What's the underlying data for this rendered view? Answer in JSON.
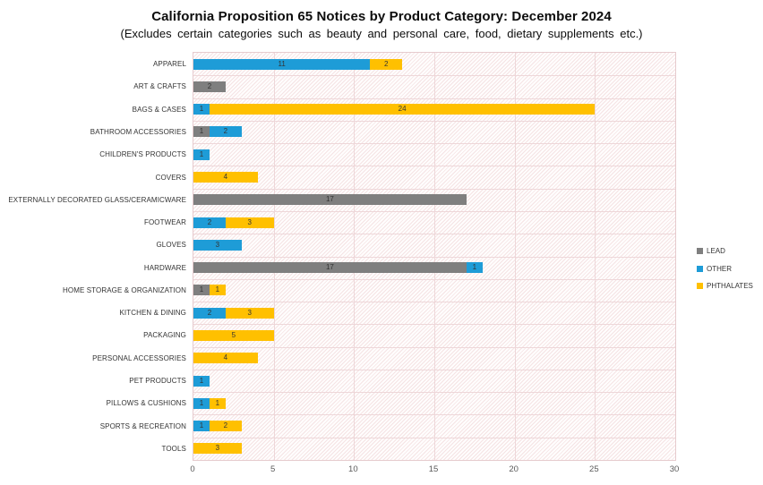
{
  "title": "California Proposition 65 Notices by Product Category: December 2024",
  "subtitle": "(Excludes certain categories such as beauty and personal care, food, dietary supplements etc.)",
  "colors": {
    "lead": "#7F7F7F",
    "other": "#1E9CD7",
    "phthalates": "#FFC000",
    "gridline": "#EED7D9",
    "plot_border": "#E6CBCE",
    "axis_text": "#595959",
    "label_text": "#333333"
  },
  "legend": {
    "position": "right",
    "items": [
      {
        "label": "LEAD",
        "color": "#7F7F7F"
      },
      {
        "label": "OTHER",
        "color": "#1E9CD7"
      },
      {
        "label": "PHTHALATES",
        "color": "#FFC000"
      }
    ]
  },
  "chart_data": {
    "type": "bar",
    "orientation": "horizontal-stacked",
    "title": "California Proposition 65 Notices by Product Category: December 2024",
    "subtitle": "(Excludes certain categories such as beauty and personal care, food, dietary supplements etc.)",
    "categories": [
      "APPAREL",
      "ART & CRAFTS",
      "BAGS & CASES",
      "BATHROOM ACCESSORIES",
      "CHILDREN'S PRODUCTS",
      "COVERS",
      "EXTERNALLY DECORATED GLASS/CERAMICWARE",
      "FOOTWEAR",
      "GLOVES",
      "HARDWARE",
      "HOME STORAGE & ORGANIZATION",
      "KITCHEN & DINING",
      "PACKAGING",
      "PERSONAL ACCESSORIES",
      "PET PRODUCTS",
      "PILLOWS & CUSHIONS",
      "SPORTS & RECREATION",
      "TOOLS"
    ],
    "series": [
      {
        "name": "LEAD",
        "color": "#7F7F7F",
        "values": [
          0,
          2,
          0,
          1,
          0,
          0,
          17,
          0,
          0,
          17,
          1,
          0,
          0,
          0,
          0,
          0,
          0,
          0
        ]
      },
      {
        "name": "OTHER",
        "color": "#1E9CD7",
        "values": [
          11,
          0,
          1,
          2,
          1,
          0,
          0,
          2,
          3,
          1,
          0,
          2,
          0,
          0,
          1,
          1,
          1,
          0
        ]
      },
      {
        "name": "PHTHALATES",
        "color": "#FFC000",
        "values": [
          2,
          0,
          24,
          0,
          0,
          4,
          0,
          3,
          0,
          0,
          1,
          3,
          5,
          4,
          0,
          1,
          2,
          3
        ]
      }
    ],
    "xlabel": "",
    "ylabel": "",
    "xlim": [
      0,
      30
    ],
    "xticks": [
      0,
      5,
      10,
      15,
      20,
      25,
      30
    ],
    "grid": true,
    "bar_labels": true,
    "legend_position": "right"
  }
}
